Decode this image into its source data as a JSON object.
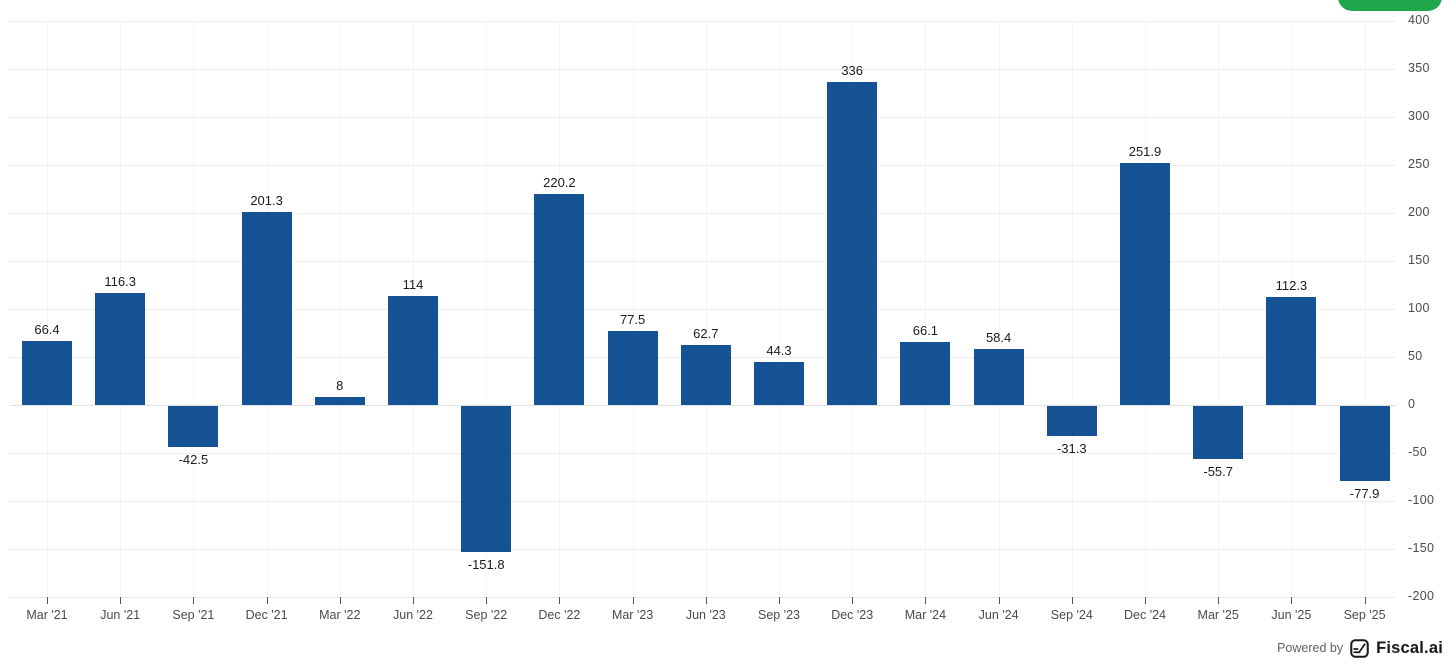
{
  "chart_data": {
    "type": "bar",
    "title": "",
    "xlabel": "",
    "ylabel": "",
    "categories": [
      "Mar '21",
      "Jun '21",
      "Sep '21",
      "Dec '21",
      "Mar '22",
      "Jun '22",
      "Sep '22",
      "Dec '22",
      "Mar '23",
      "Jun '23",
      "Sep '23",
      "Dec '23",
      "Mar '24",
      "Jun '24",
      "Sep '24",
      "Dec '24",
      "Mar '25",
      "Jun '25",
      "Sep '25"
    ],
    "values": [
      66.4,
      116.3,
      -42.5,
      201.3,
      8,
      114,
      -151.8,
      220.2,
      77.5,
      62.7,
      44.3,
      336,
      66.1,
      58.4,
      -31.3,
      251.9,
      -55.7,
      112.3,
      -77.9
    ],
    "value_labels": [
      "66.4",
      "116.3",
      "-42.5",
      "201.3",
      "8",
      "114",
      "-151.8",
      "220.2",
      "77.5",
      "62.7",
      "44.3",
      "336",
      "66.1",
      "58.4",
      "-31.3",
      "251.9",
      "-55.7",
      "112.3",
      "-77.9"
    ],
    "ylim": [
      -200,
      400
    ],
    "yticks": [
      400,
      350,
      300,
      250,
      200,
      150,
      100,
      50,
      0,
      -50,
      -100,
      -150,
      -200
    ],
    "grid": "on",
    "legend": "none",
    "y_axis_side": "right",
    "bar_color": "#155394",
    "value_label_color": "#1c1c1c",
    "axis_label_color": "#4b4b4b"
  },
  "header": {
    "button_label": "",
    "button_color": "#20a74c"
  },
  "footer": {
    "powered_by": "Powered by",
    "brand": "Fiscal.ai",
    "logo_icon": "fiscal-logo-icon"
  }
}
